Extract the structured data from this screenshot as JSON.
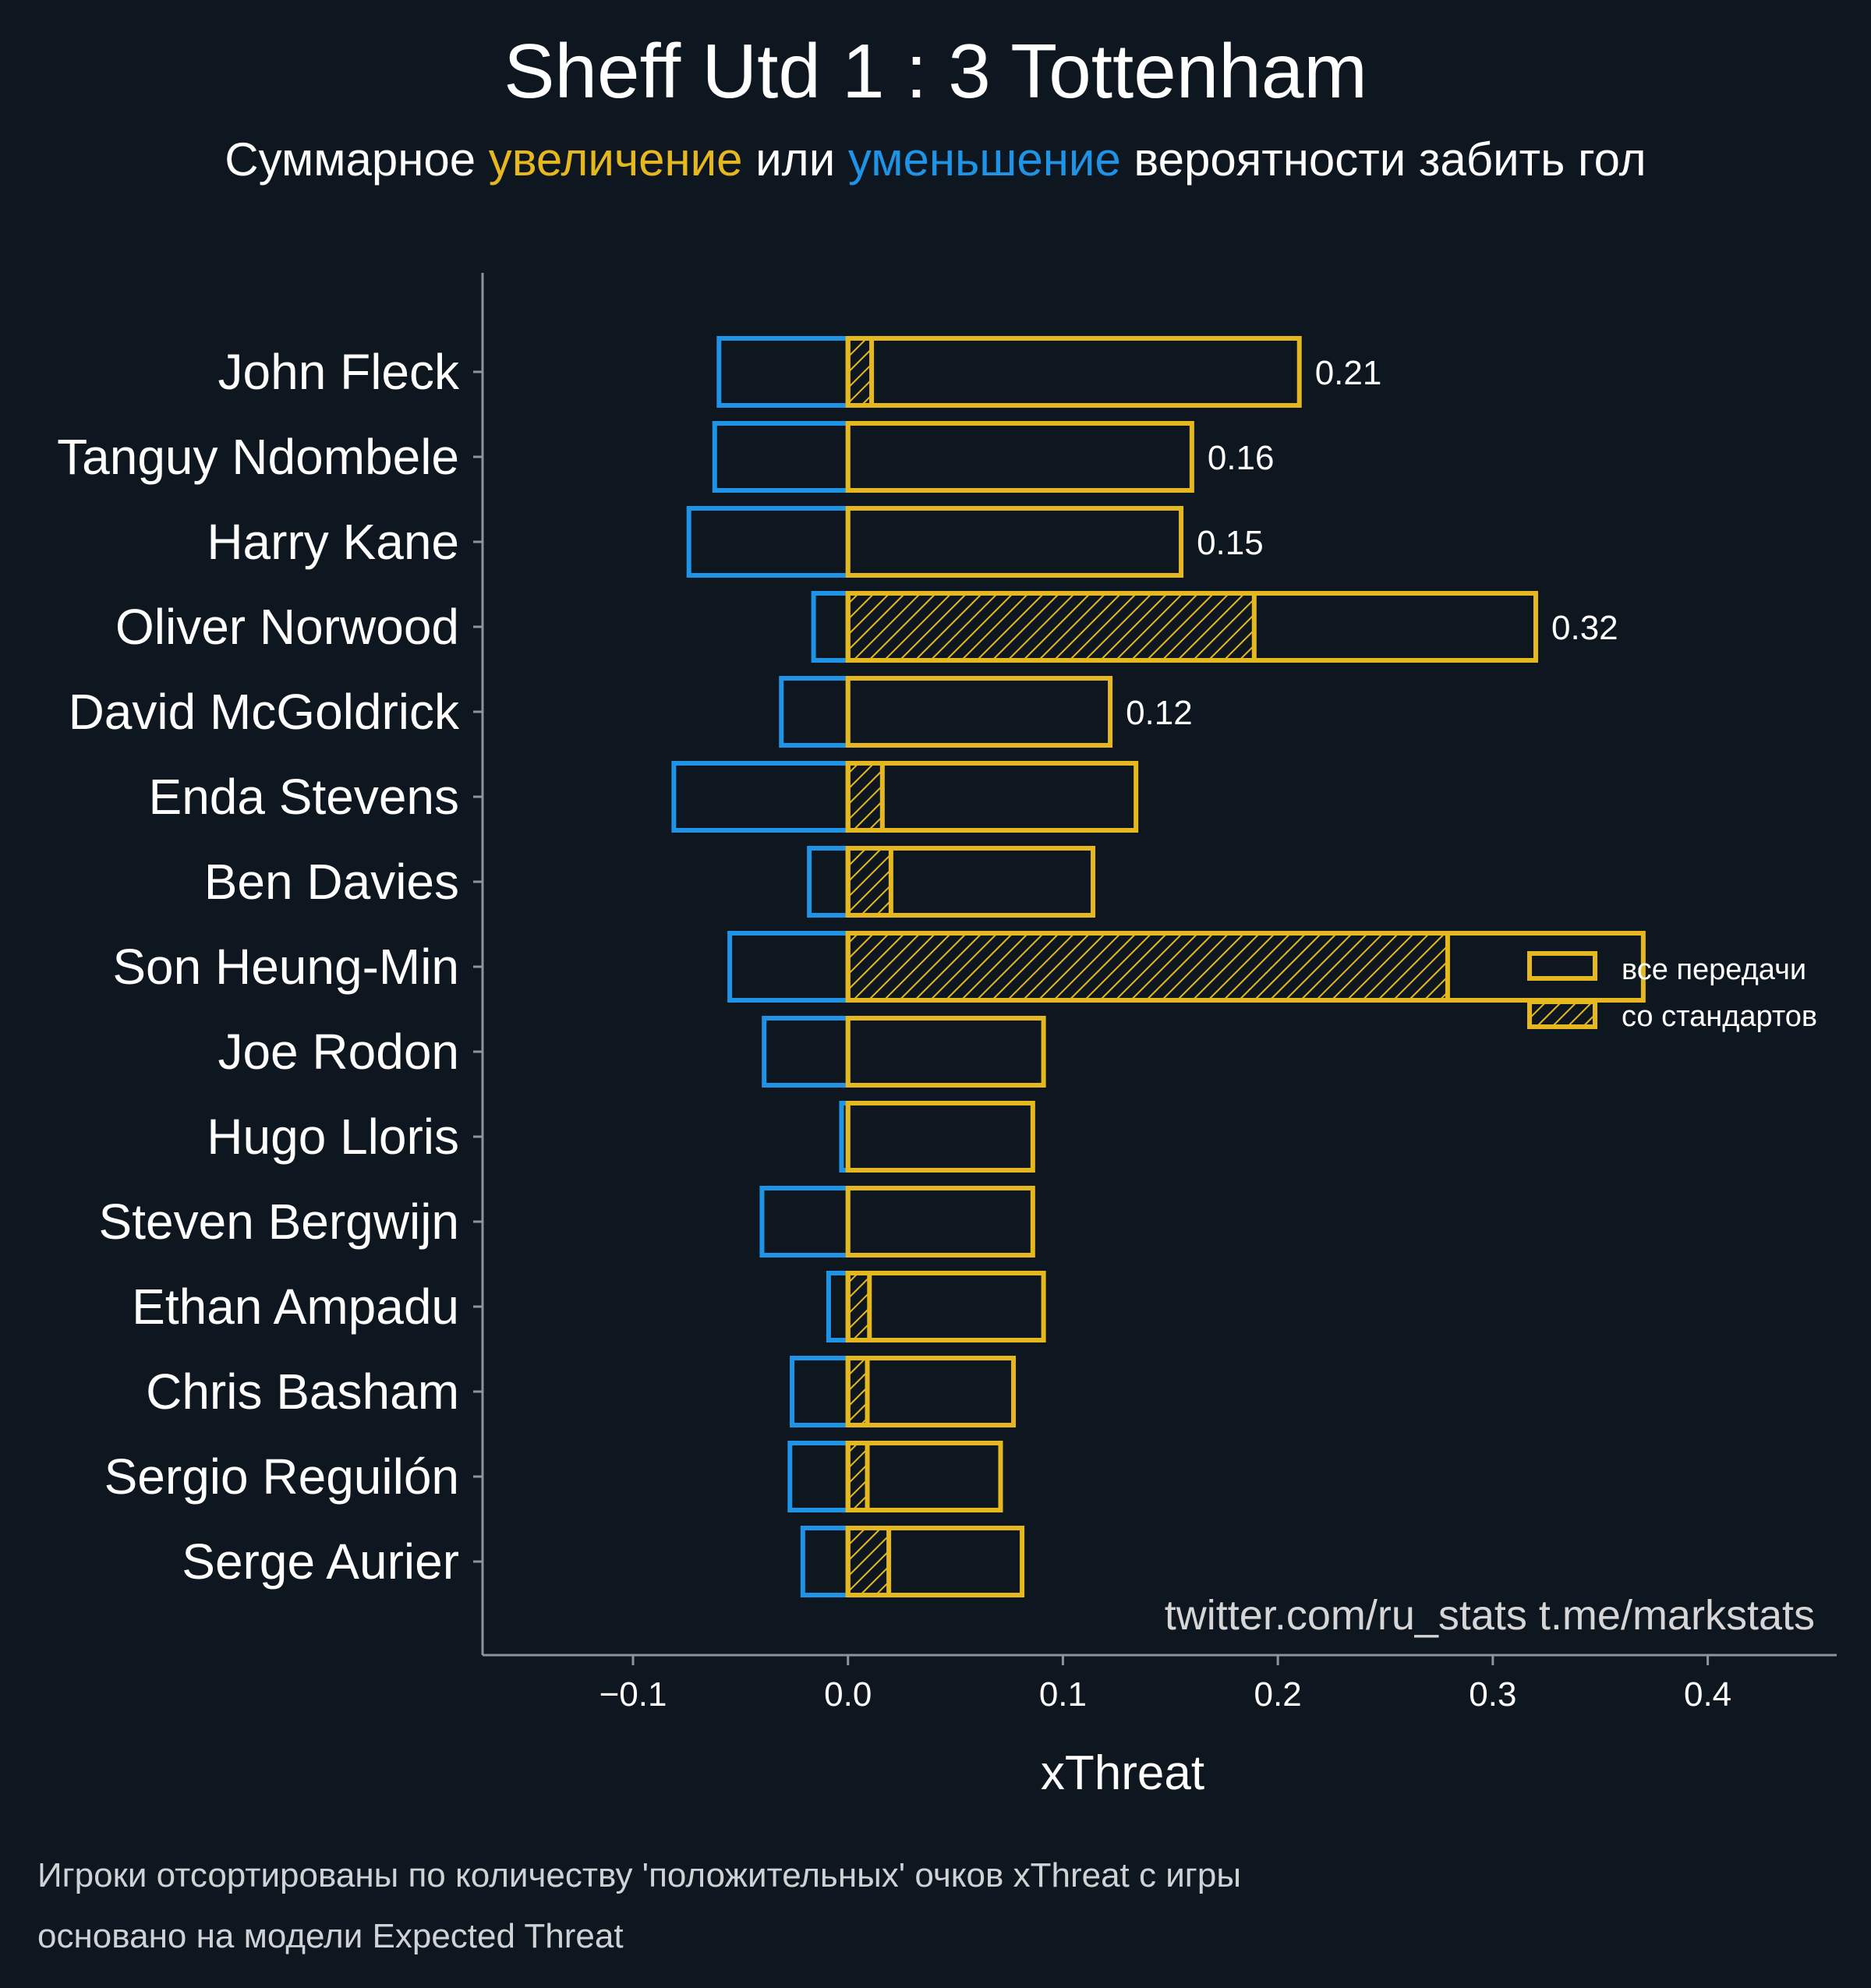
{
  "colors": {
    "background": "#0e1720",
    "positive": "#e6b820",
    "negative": "#1f93e6",
    "axis": "#8c959c",
    "text": "#ffffff"
  },
  "chart_data": {
    "type": "bar",
    "orientation": "horizontal",
    "title": "Sheff Utd 1 : 3 Tottenham",
    "subtitle": {
      "part1": "Суммарное ",
      "positive_word": "увеличение",
      "part2": " или ",
      "negative_word": "уменьшение",
      "part3": " вероятности забить гол"
    },
    "xlabel": "xThreat",
    "xlim": [
      -0.17,
      0.46
    ],
    "xticks": [
      -0.1,
      0.0,
      0.1,
      0.2,
      0.3,
      0.4
    ],
    "xtick_labels": [
      "−0.1",
      "0.0",
      "0.1",
      "0.2",
      "0.3",
      "0.4"
    ],
    "categories": [
      "John Fleck",
      "Tanguy Ndombele",
      "Harry Kane",
      "Oliver Norwood",
      "David McGoldrick",
      "Enda Stevens",
      "Ben Davies",
      "Son Heung-Min",
      "Joe Rodon",
      "Hugo Lloris",
      "Steven Bergwijn",
      "Ethan Ampadu",
      "Chris Basham",
      "Sergio Reguilón",
      "Serge Aurier"
    ],
    "series": [
      {
        "name": "все передачи",
        "values": [
          0.21,
          0.16,
          0.155,
          0.32,
          0.122,
          0.134,
          0.114,
          0.37,
          0.091,
          0.086,
          0.086,
          0.091,
          0.077,
          0.071,
          0.081
        ]
      },
      {
        "name": "со стандартов",
        "values": [
          0.011,
          0.0,
          0.0,
          0.189,
          0.0,
          0.016,
          0.02,
          0.279,
          0.0,
          0.0,
          0.0,
          0.01,
          0.009,
          0.009,
          0.019
        ]
      },
      {
        "values": [
          -0.06,
          -0.062,
          -0.074,
          -0.016,
          -0.031,
          -0.081,
          -0.018,
          -0.055,
          -0.039,
          -0.003,
          -0.04,
          -0.009,
          -0.026,
          -0.027,
          -0.021
        ]
      }
    ],
    "data_labels": [
      "0.21",
      "0.16",
      "0.15",
      "0.32",
      "0.12",
      "",
      "",
      "",
      "",
      "",
      "",
      "",
      "",
      "",
      ""
    ],
    "legend": {
      "placement": "right",
      "entries": [
        "все передачи",
        "со стандартов"
      ]
    },
    "grid": false
  },
  "annotations": {
    "credit": "twitter.com/ru_stats  t.me/markstats",
    "footnote_1": "Игроки отсортированы по количеству 'положительных' очков xThreat с игры",
    "footnote_2": "основано на модели Expected Threat"
  }
}
